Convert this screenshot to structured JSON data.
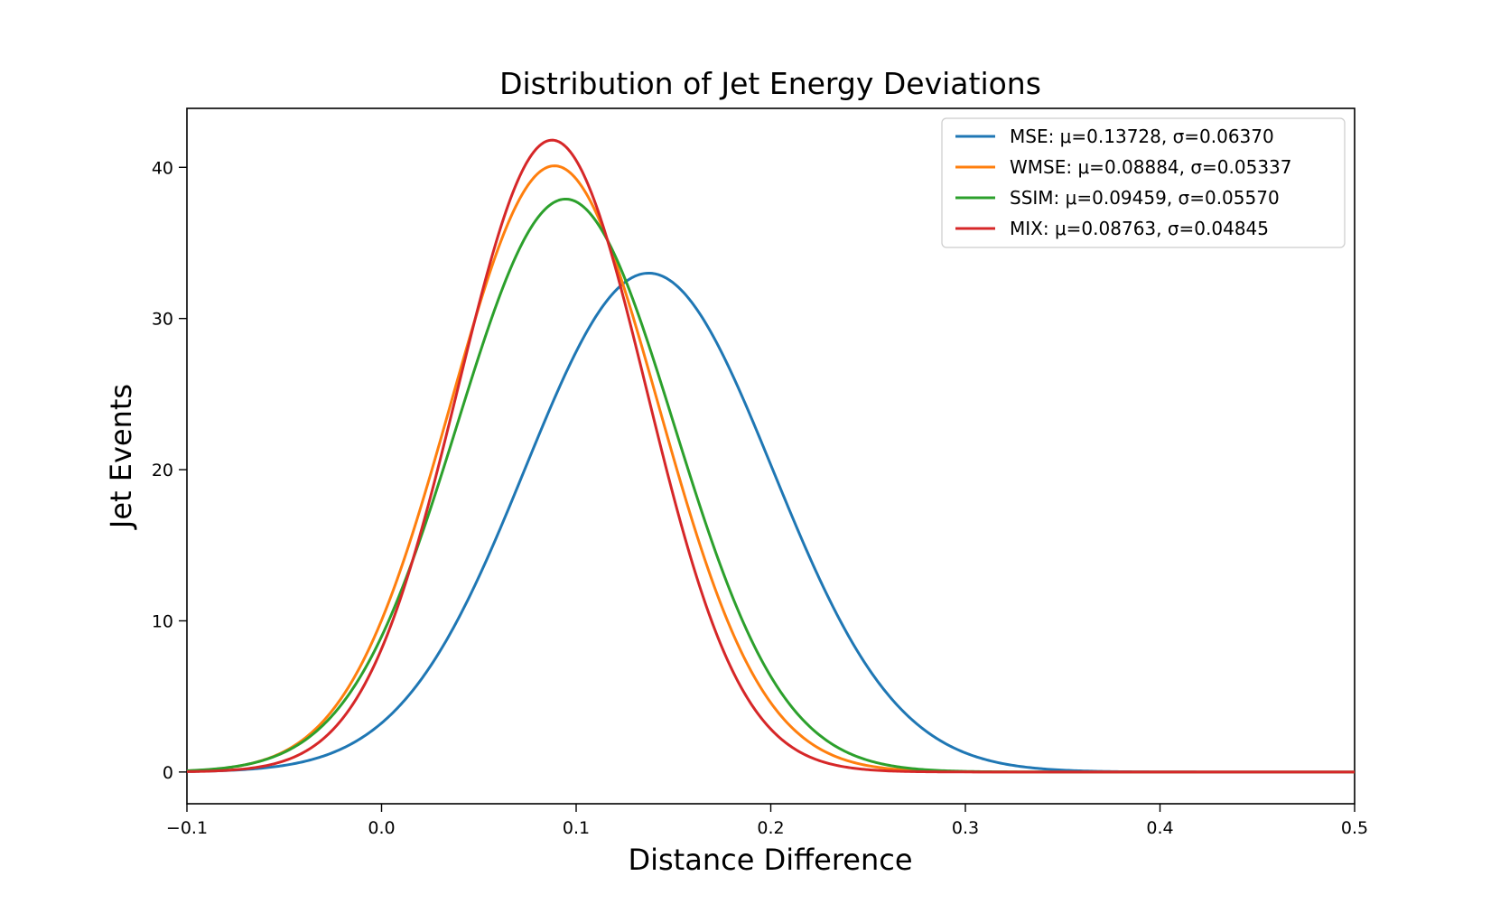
{
  "chart_data": {
    "type": "line",
    "title": "Distribution of Jet Energy Deviations",
    "xlabel": "Distance Difference",
    "ylabel": "Jet Events",
    "xlim": [
      -0.1,
      0.5
    ],
    "ylim": [
      -2.1,
      43.9
    ],
    "x_ticks": [
      -0.1,
      0.0,
      0.1,
      0.2,
      0.3,
      0.4,
      0.5
    ],
    "x_tick_labels": [
      "−0.1",
      "0.0",
      "0.1",
      "0.2",
      "0.3",
      "0.4",
      "0.5"
    ],
    "y_ticks": [
      0,
      10,
      20,
      30,
      40
    ],
    "y_tick_labels": [
      "0",
      "10",
      "20",
      "30",
      "40"
    ],
    "grid": false,
    "legend_position": "top-right",
    "series": [
      {
        "name": "MSE",
        "label": "MSE: μ=0.13728, σ=0.06370",
        "mu": 0.13728,
        "sigma": 0.0637,
        "peak": 33.0,
        "color": "#1f77b4"
      },
      {
        "name": "WMSE",
        "label": "WMSE: μ=0.08884, σ=0.05337",
        "mu": 0.08884,
        "sigma": 0.05337,
        "peak": 40.1,
        "color": "#ff7f0e"
      },
      {
        "name": "SSIM",
        "label": "SSIM: μ=0.09459, σ=0.05570",
        "mu": 0.09459,
        "sigma": 0.0557,
        "peak": 37.9,
        "color": "#2ca02c"
      },
      {
        "name": "MIX",
        "label": "MIX: μ=0.08763, σ=0.04845",
        "mu": 0.08763,
        "sigma": 0.04845,
        "peak": 41.8,
        "color": "#d62728"
      }
    ]
  }
}
